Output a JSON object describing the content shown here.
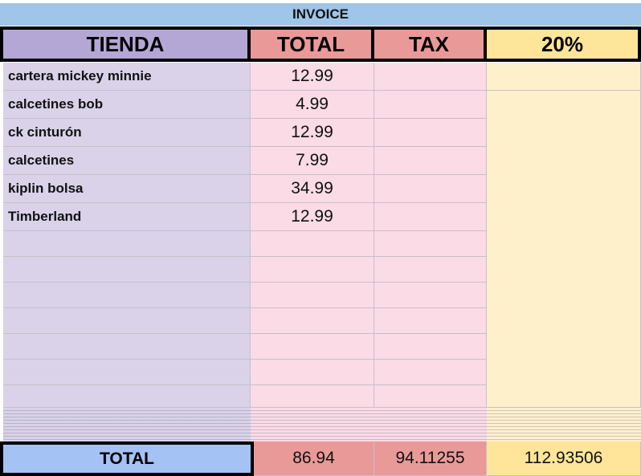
{
  "title": "INVOICE",
  "headers": {
    "store": "TIENDA",
    "total": "TOTAL",
    "tax": "TAX",
    "pct": "20%"
  },
  "rows": [
    {
      "store": "cartera mickey minnie",
      "total": "12.99"
    },
    {
      "store": "calcetines bob",
      "total": "4.99"
    },
    {
      "store": "ck cinturón",
      "total": "12.99"
    },
    {
      "store": "calcetines",
      "total": "7.99"
    },
    {
      "store": "kiplin bolsa",
      "total": "34.99"
    },
    {
      "store": "Timberland",
      "total": "12.99"
    }
  ],
  "footer": {
    "label": "TOTAL",
    "total": "86.94",
    "tax": "94.11255",
    "pct": "112.93506"
  },
  "colors": {
    "title": "#9fc5e8",
    "store_header": "#b4a7d6",
    "store_cells": "#d9d2e9",
    "total_header": "#ea9999",
    "cells_pink": "#fadbe6",
    "pct_header": "#ffe599",
    "pct_cells": "#fff0cc",
    "footer_label": "#a4c2f4"
  }
}
